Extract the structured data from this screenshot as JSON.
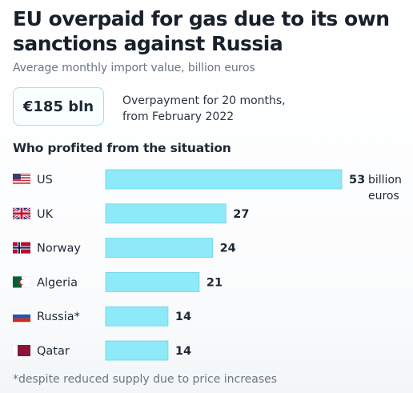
{
  "title": "EU overpaid for gas due to its own sanctions against Russia",
  "subtitle": "Average monthly import value, billion euros",
  "callout": {
    "value": "€185 bln",
    "note_line1": "Overpayment for 20 months,",
    "note_line2": "from February 2022"
  },
  "section_title": "Who profited from the situation",
  "chart_data": {
    "type": "bar",
    "orientation": "horizontal",
    "categories": [
      "US",
      "UK",
      "Norway",
      "Algeria",
      "Russia*",
      "Qatar"
    ],
    "values": [
      53,
      27,
      24,
      21,
      14,
      14
    ],
    "value_labels": [
      "53",
      "27",
      "24",
      "21",
      "14",
      "14"
    ],
    "unit_line1": "billion",
    "unit_line2": "euros",
    "flags": [
      "us-flag-icon",
      "uk-flag-icon",
      "norway-flag-icon",
      "algeria-flag-icon",
      "russia-flag-icon",
      "qatar-flag-icon"
    ],
    "bar_color": "#8ee9f8",
    "bar_border_color": "#6fd4e6",
    "xlim": [
      0,
      53
    ],
    "grid": false
  },
  "footnote": "*despite reduced supply due to price increases"
}
